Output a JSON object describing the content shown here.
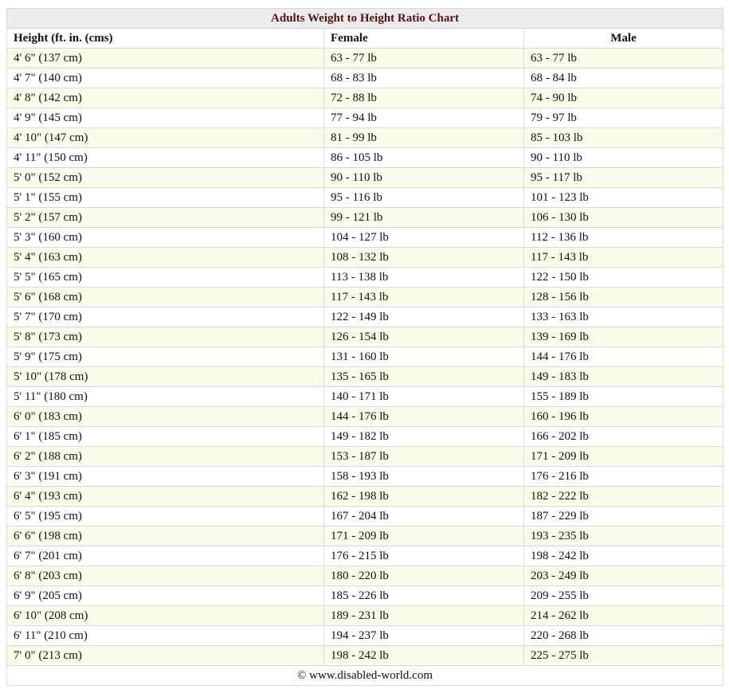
{
  "table": {
    "title": "Adults Weight to Height Ratio Chart",
    "headers": [
      "Height (ft. in. (cms)",
      "Female",
      "Male"
    ],
    "rows": [
      [
        "4' 6\" (137 cm)",
        "63 - 77 lb",
        "63 - 77 lb"
      ],
      [
        "4' 7\" (140 cm)",
        "68 - 83 lb",
        "68 - 84 lb"
      ],
      [
        "4' 8\" (142 cm)",
        "72 - 88 lb",
        "74 - 90 lb"
      ],
      [
        "4' 9\" (145 cm)",
        "77 - 94 lb",
        "79 - 97 lb"
      ],
      [
        "4' 10\" (147 cm)",
        "81 - 99 lb",
        "85 - 103 lb"
      ],
      [
        "4' 11\" (150 cm)",
        "86 - 105 lb",
        "90 - 110 lb"
      ],
      [
        "5' 0\" (152 cm)",
        "90 - 110 lb",
        "95 - 117 lb"
      ],
      [
        "5' 1\" (155 cm)",
        "95 - 116 lb",
        "101 - 123 lb"
      ],
      [
        "5' 2\" (157 cm)",
        "99 - 121 lb",
        "106 - 130 lb"
      ],
      [
        "5' 3\" (160 cm)",
        "104 - 127 lb",
        "112 - 136 lb"
      ],
      [
        "5' 4\" (163 cm)",
        "108 - 132 lb",
        "117 - 143 lb"
      ],
      [
        "5' 5\" (165 cm)",
        "113 - 138 lb",
        "122 - 150 lb"
      ],
      [
        "5' 6\" (168 cm)",
        "117 - 143 lb",
        "128 - 156 lb"
      ],
      [
        "5' 7\" (170 cm)",
        "122 - 149 lb",
        "133 - 163 lb"
      ],
      [
        "5' 8\" (173 cm)",
        "126 - 154 lb",
        "139 - 169 lb"
      ],
      [
        "5' 9\" (175 cm)",
        "131 - 160 lb",
        "144 - 176 lb"
      ],
      [
        "5' 10\" (178 cm)",
        "135 - 165 lb",
        "149 - 183 lb"
      ],
      [
        "5' 11\" (180 cm)",
        "140 - 171 lb",
        "155 - 189 lb"
      ],
      [
        "6' 0\" (183 cm)",
        "144 - 176 lb",
        "160 - 196 lb"
      ],
      [
        "6' 1\" (185 cm)",
        "149 - 182 lb",
        "166 - 202 lb"
      ],
      [
        "6' 2\" (188 cm)",
        "153 - 187 lb",
        "171 - 209 lb"
      ],
      [
        "6' 3\" (191 cm)",
        "158 - 193 lb",
        "176 - 216 lb"
      ],
      [
        "6' 4\" (193 cm)",
        "162 - 198 lb",
        "182 - 222 lb"
      ],
      [
        "6' 5\" (195 cm)",
        "167 - 204 lb",
        "187 - 229 lb"
      ],
      [
        "6' 6\" (198 cm)",
        "171 - 209 lb",
        "193 - 235 lb"
      ],
      [
        "6' 7\" (201 cm)",
        "176 - 215 lb",
        "198 - 242 lb"
      ],
      [
        "6' 8\" (203 cm)",
        "180 - 220 lb",
        "203 - 249 lb"
      ],
      [
        "6' 9\" (205 cm)",
        "185 - 226 lb",
        "209 - 255 lb"
      ],
      [
        "6' 10\" (208 cm)",
        "189 - 231 lb",
        "214 - 262 lb"
      ],
      [
        "6' 11\" (210 cm)",
        "194 - 237 lb",
        "220 - 268 lb"
      ],
      [
        "7' 0\" (213 cm)",
        "198 - 242 lb",
        "225 - 275 lb"
      ]
    ],
    "footer": "© www.disabled-world.com"
  },
  "colors": {
    "title_text": "#5a1010",
    "title_background": "#ececec",
    "odd_row_background": "#fbfbea",
    "border": "#dcdcdc"
  }
}
